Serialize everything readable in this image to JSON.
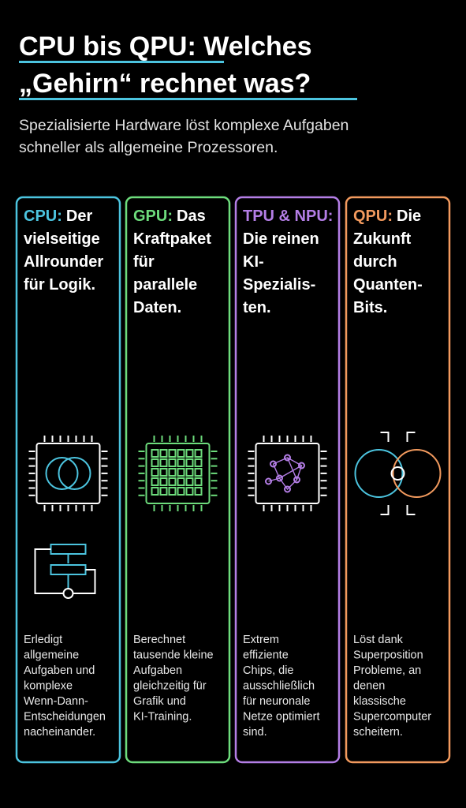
{
  "header": {
    "title_lines": [
      "CPU bis QPU: Welches",
      "„Gehirn“ rechnet was?"
    ],
    "subtitle_lines": [
      "Spezialisierte Hardware löst komplexe Aufgaben",
      "schneller als allgemeine Prozessoren."
    ]
  },
  "cards": [
    {
      "label": "CPU:",
      "color": "#4cc4df",
      "heading_lines": [
        "Der",
        "vielseitige",
        "Allrounder",
        "für Logik."
      ],
      "body_lines": [
        "Erledigt",
        "allgemeine",
        "Aufgaben und",
        "komplexe",
        "Wenn-Dann-",
        "Entscheidungen",
        "nacheinander."
      ]
    },
    {
      "label": "GPU:",
      "color": "#6ddc7c",
      "heading_lines": [
        "Das",
        "Kraftpaket",
        "für",
        "parallele",
        "Daten."
      ],
      "body_lines": [
        "Berechnet",
        "tausende kleine",
        "Aufgaben",
        "gleichzeitig für",
        "Grafik und",
        "KI-Training."
      ]
    },
    {
      "label": "TPU & NPU:",
      "color": "#b47ee6",
      "heading_lines": [
        "",
        "Die reinen",
        "KI-",
        "Spezialis-",
        "ten."
      ],
      "body_lines": [
        "Extrem",
        "effiziente",
        "Chips, die",
        "ausschließlich",
        "für neuronale",
        "Netze optimiert",
        "sind."
      ]
    },
    {
      "label": "QPU:",
      "color": "#f29a5e",
      "heading_lines": [
        "Die",
        "Zukunft",
        "durch",
        "Quanten-",
        "Bits."
      ],
      "body_lines": [
        "Löst dank",
        "Superposition",
        "Probleme, an",
        "denen",
        "klassische",
        "Supercomputer",
        "scheitern."
      ]
    }
  ]
}
